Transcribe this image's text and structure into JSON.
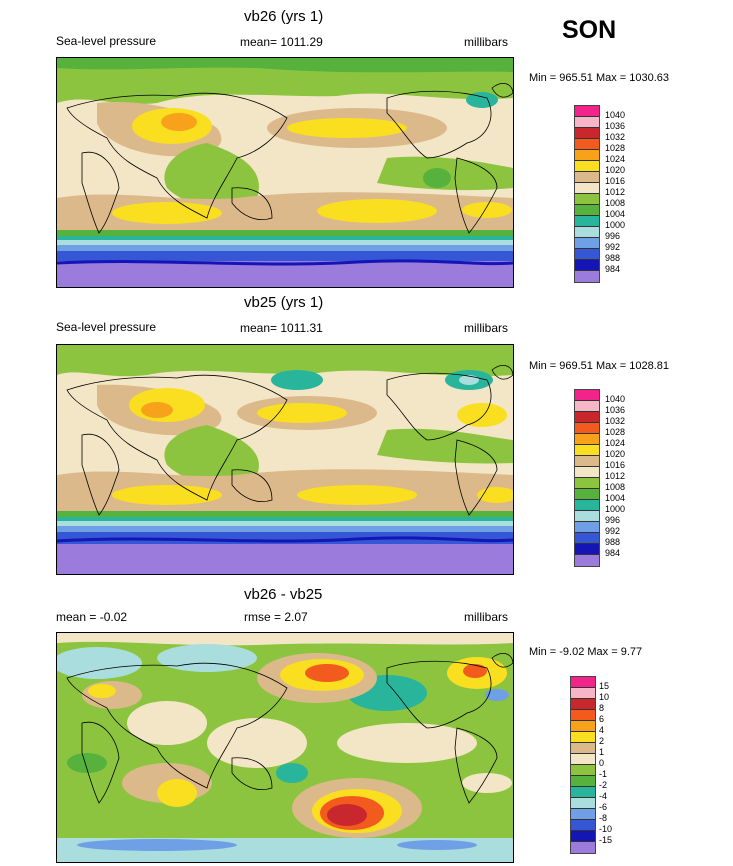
{
  "season": "SON",
  "panels": [
    {
      "title": "vb26 (yrs 1)",
      "left_label": "Sea-level pressure",
      "center_label": "mean= 1011.29",
      "units": "millibars",
      "minmax": "Min = 965.51 Max = 1030.63",
      "colorbar_labels": [
        "1040",
        "1036",
        "1032",
        "1028",
        "1024",
        "1020",
        "1016",
        "1012",
        "1008",
        "1004",
        "1000",
        "996",
        "992",
        "988",
        "984"
      ]
    },
    {
      "title": "vb25 (yrs 1)",
      "left_label": "Sea-level pressure",
      "center_label": "mean= 1011.31",
      "units": "millibars",
      "minmax": "Min = 969.51 Max = 1028.81",
      "colorbar_labels": [
        "1040",
        "1036",
        "1032",
        "1028",
        "1024",
        "1020",
        "1016",
        "1012",
        "1008",
        "1004",
        "1000",
        "996",
        "992",
        "988",
        "984"
      ]
    },
    {
      "title": "vb26 - vb25",
      "left_label": "mean =  -0.02",
      "center_label": "rmse =   2.07",
      "units": "millibars",
      "minmax": "Min =  -9.02 Max =   9.77",
      "colorbar_labels": [
        "15",
        "10",
        "8",
        "6",
        "4",
        "2",
        "1",
        "0",
        "-1",
        "-2",
        "-4",
        "-6",
        "-8",
        "-10",
        "-15"
      ]
    }
  ],
  "colors": {
    "scale": [
      "#f2248c",
      "#f5b6c8",
      "#c8272d",
      "#f25a1e",
      "#f7a21a",
      "#f9df1f",
      "#dcb98a",
      "#f3e6c6",
      "#8cc43f",
      "#56b23c",
      "#28b59c",
      "#a9ddde",
      "#6f9fe5",
      "#3557d6",
      "#1515b6",
      "#9b7bdc"
    ]
  }
}
